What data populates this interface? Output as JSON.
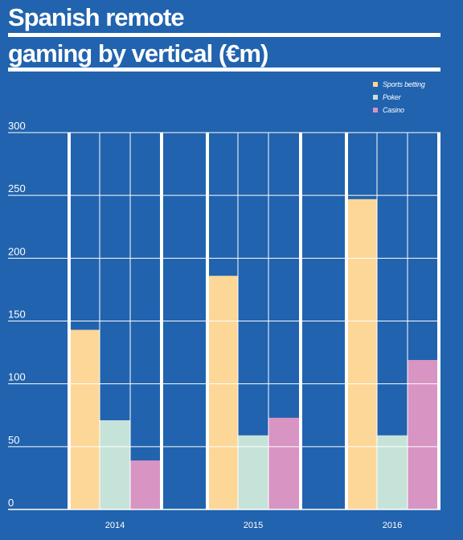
{
  "title_lines": [
    "Spanish remote",
    "gaming by vertical (€m)"
  ],
  "colors": {
    "background": "#2163ae",
    "grid": "#ffffff",
    "text": "#ffffff",
    "sports_betting": "#fdd797",
    "poker": "#c6e3da",
    "casino": "#d894c3"
  },
  "chart_data": {
    "type": "bar",
    "title": "Spanish remote gaming by vertical (€m)",
    "categories": [
      "2014",
      "2015",
      "2016"
    ],
    "series": [
      {
        "name": "Sports betting",
        "values": [
          143,
          186,
          247
        ]
      },
      {
        "name": "Poker",
        "values": [
          71,
          59,
          59
        ]
      },
      {
        "name": "Casino",
        "values": [
          39,
          73,
          119
        ]
      }
    ],
    "ylim": [
      0,
      300
    ],
    "yticks": [
      "0",
      "50",
      "100",
      "150",
      "200",
      "250",
      "300"
    ],
    "xlabel": "",
    "ylabel": "",
    "grid": true,
    "legend": "top-right"
  }
}
